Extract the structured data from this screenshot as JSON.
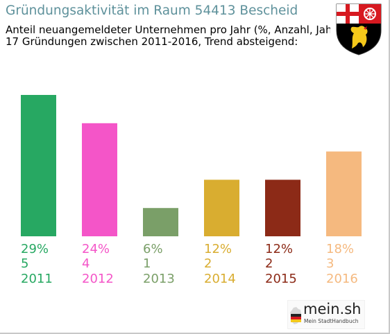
{
  "title": "Gründungsaktivität im Raum 54413 Bescheid",
  "subtitle_1": "Anteil neuangemeldeter Unternehmen pro Jahr (%, Anzahl, Jahr)",
  "subtitle_2": "17 Gründungen zwischen 2011-2016, Trend absteigend:",
  "crest_icon": "rhineland-palatinate-coat-of-arms-icon",
  "brand": {
    "name": "mein.sh",
    "tagline": "Mein StadtHandbuch",
    "icon": "germany-map-icon"
  },
  "chart_data": {
    "type": "bar",
    "categories": [
      "2011",
      "2012",
      "2013",
      "2014",
      "2015",
      "2016"
    ],
    "percent_labels": [
      "29%",
      "24%",
      "6%",
      "12%",
      "12%",
      "18%"
    ],
    "count_labels": [
      "5",
      "4",
      "1",
      "2",
      "2",
      "3"
    ],
    "values": [
      5,
      4,
      1,
      2,
      2,
      3
    ],
    "colors": [
      "#27a862",
      "#f455c8",
      "#7a9f68",
      "#d9ad30",
      "#8c2a17",
      "#f5b97f"
    ],
    "ylim": [
      0,
      5
    ],
    "grid": false,
    "legend": "none"
  }
}
